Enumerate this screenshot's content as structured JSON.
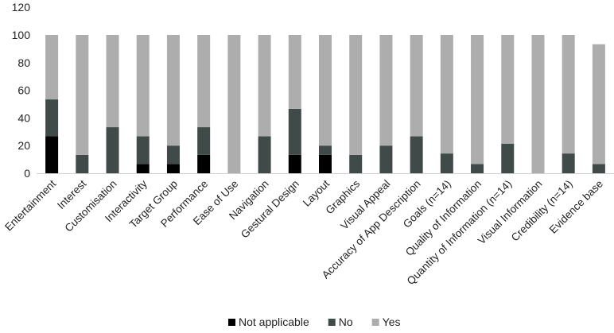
{
  "chart_data": {
    "type": "bar",
    "stacked": true,
    "title": "",
    "xlabel": "",
    "ylabel": "",
    "ylim": [
      0,
      120
    ],
    "yticks": [
      0,
      20,
      40,
      60,
      80,
      100,
      120
    ],
    "grid": false,
    "legend_position": "bottom",
    "categories": [
      "Entertainment",
      "Interest",
      "Customisation",
      "Interactivity",
      "Target Group",
      "Performance",
      "Ease of Use",
      "Navigation",
      "Gestural Design",
      "Layout",
      "Graphics",
      "Visual Appeal",
      "Accuracy of App Description",
      "Goals (n=14)",
      "Quality of Information",
      "Quantity of Information (n=14)",
      "Visual Information",
      "Credibility (n=14)",
      "Evidence base"
    ],
    "series": [
      {
        "name": "Not applicable",
        "color": "#000000",
        "values": [
          26.7,
          0,
          0,
          6.7,
          6.7,
          13.3,
          0,
          0,
          13.3,
          13.3,
          0,
          0,
          0,
          0,
          0,
          0,
          0,
          0,
          0
        ]
      },
      {
        "name": "No",
        "color": "#404a48",
        "values": [
          26.7,
          13.3,
          33.3,
          20,
          13.3,
          20,
          0,
          26.7,
          33.3,
          6.7,
          13.3,
          20,
          26.7,
          14.3,
          6.7,
          21.4,
          0,
          14.3,
          6.7
        ]
      },
      {
        "name": "Yes",
        "color": "#adadad",
        "values": [
          46.6,
          86.7,
          66.7,
          73.3,
          80,
          66.7,
          100,
          73.3,
          53.4,
          80,
          86.7,
          80,
          73.3,
          85.7,
          93.3,
          78.6,
          100,
          85.7,
          86.6
        ]
      }
    ]
  }
}
